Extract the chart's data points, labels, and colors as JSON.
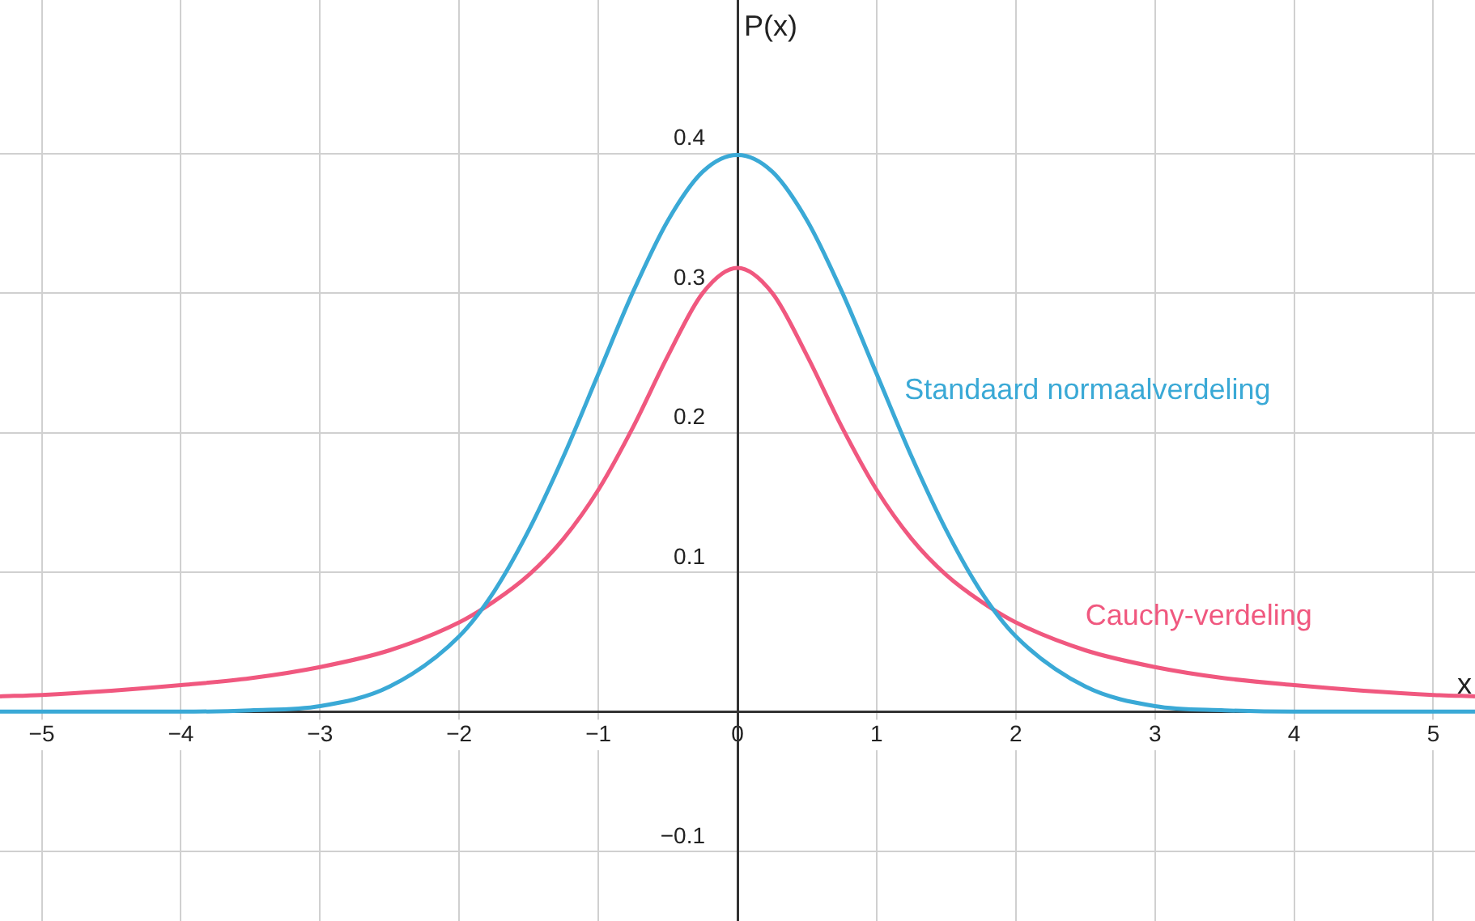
{
  "chart_data": {
    "type": "line",
    "xlabel": "x",
    "ylabel": "P(x)",
    "xlim": [
      -5.3,
      5.3
    ],
    "ylim": [
      -0.15,
      0.51
    ],
    "xticks": [
      -5,
      -4,
      -3,
      -2,
      -1,
      0,
      1,
      2,
      3,
      4,
      5
    ],
    "yticks": [
      -0.1,
      0.1,
      0.2,
      0.3,
      0.4
    ],
    "grid": true,
    "legend": false,
    "marker": "none",
    "line_style": "solid",
    "series": [
      {
        "name": "Standaard normaalverdeling",
        "color": "#3aa9d6",
        "x": [
          -5.3,
          -4.5,
          -4,
          -3.5,
          -3,
          -2.5,
          -2,
          -1.75,
          -1.5,
          -1.25,
          -1,
          -0.75,
          -0.5,
          -0.25,
          0,
          0.25,
          0.5,
          0.75,
          1,
          1.25,
          1.5,
          1.75,
          2,
          2.5,
          3,
          3.5,
          4,
          4.5,
          5.3
        ],
        "values": [
          0,
          0,
          0,
          0.001,
          0.004,
          0.018,
          0.054,
          0.086,
          0.13,
          0.183,
          0.242,
          0.301,
          0.352,
          0.387,
          0.399,
          0.387,
          0.352,
          0.301,
          0.242,
          0.183,
          0.13,
          0.086,
          0.054,
          0.018,
          0.004,
          0.001,
          0,
          0,
          0
        ]
      },
      {
        "name": "Cauchy-verdeling",
        "color": "#f0587f",
        "x": [
          -5.3,
          -5,
          -4.5,
          -4,
          -3.5,
          -3,
          -2.5,
          -2,
          -1.75,
          -1.5,
          -1.25,
          -1,
          -0.75,
          -0.5,
          -0.25,
          0,
          0.25,
          0.5,
          0.75,
          1,
          1.25,
          1.5,
          1.75,
          2,
          2.5,
          3,
          3.5,
          4,
          4.5,
          5,
          5.3
        ],
        "values": [
          0.011,
          0.012,
          0.015,
          0.019,
          0.024,
          0.032,
          0.044,
          0.064,
          0.079,
          0.098,
          0.124,
          0.159,
          0.204,
          0.255,
          0.3,
          0.318,
          0.3,
          0.255,
          0.204,
          0.159,
          0.124,
          0.098,
          0.079,
          0.064,
          0.044,
          0.032,
          0.024,
          0.019,
          0.015,
          0.012,
          0.011
        ]
      }
    ]
  }
}
